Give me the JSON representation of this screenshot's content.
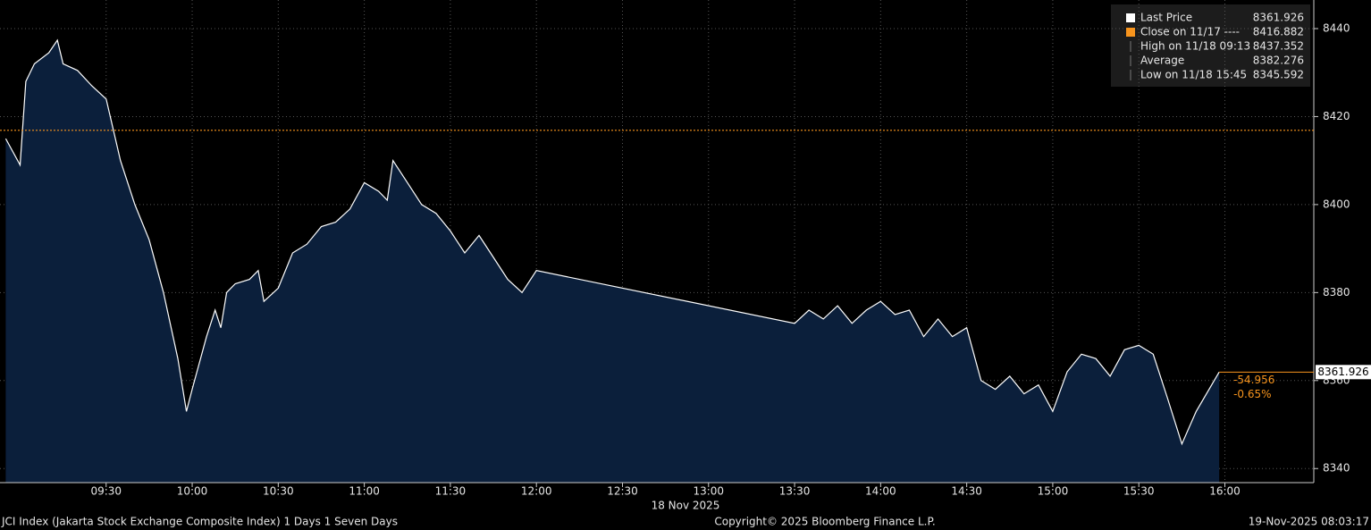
{
  "chart_data": {
    "type": "area",
    "series": [
      {
        "name": "Last Price",
        "color": "#ffffff",
        "fill": "#0b1f3b",
        "values": [
          8415,
          8409,
          8428,
          8432,
          8434.5,
          8437.352,
          8432,
          8430.5,
          8427,
          8424,
          8410,
          8400,
          8392,
          8380,
          8365,
          8353,
          8358,
          8370,
          8376,
          8372,
          8380,
          8382,
          8383,
          8385,
          8378,
          8381,
          8389,
          8391,
          8395,
          8396,
          8399,
          8405,
          8403,
          8401,
          8410,
          8405,
          8400,
          8398,
          8394,
          8389,
          8393,
          8388,
          8383,
          8380,
          8385,
          8373,
          8376,
          8374,
          8377,
          8373,
          8376,
          8378,
          8375,
          8376,
          8370,
          8374,
          8370,
          8372,
          8360,
          8358,
          8361,
          8357,
          8359,
          8353,
          8362,
          8366,
          8365,
          8361,
          8367,
          8368,
          8366,
          8356,
          8345.592,
          8353,
          8361.926
        ]
      }
    ],
    "x": [
      "08:55",
      "09:00",
      "09:02",
      "09:05",
      "09:10",
      "09:13",
      "09:15",
      "09:20",
      "09:25",
      "09:30",
      "09:35",
      "09:40",
      "09:45",
      "09:50",
      "09:55",
      "09:58",
      "10:00",
      "10:05",
      "10:08",
      "10:10",
      "10:12",
      "10:15",
      "10:20",
      "10:23",
      "10:25",
      "10:30",
      "10:35",
      "10:40",
      "10:45",
      "10:50",
      "10:55",
      "11:00",
      "11:05",
      "11:08",
      "11:10",
      "11:15",
      "11:20",
      "11:25",
      "11:30",
      "11:35",
      "11:40",
      "11:45",
      "11:50",
      "11:55",
      "12:00",
      "13:30",
      "13:35",
      "13:40",
      "13:45",
      "13:50",
      "13:55",
      "14:00",
      "14:05",
      "14:10",
      "14:15",
      "14:20",
      "14:25",
      "14:30",
      "14:35",
      "14:40",
      "14:45",
      "14:50",
      "14:55",
      "15:00",
      "15:05",
      "15:10",
      "15:15",
      "15:20",
      "15:25",
      "15:30",
      "15:35",
      "15:40",
      "15:45",
      "15:50",
      "15:58"
    ],
    "xlim": [
      "08:53",
      "16:31"
    ],
    "xticks": [
      "09:30",
      "10:00",
      "10:30",
      "11:00",
      "11:30",
      "12:00",
      "12:30",
      "13:00",
      "13:30",
      "14:00",
      "14:30",
      "15:00",
      "15:30",
      "16:00"
    ],
    "xlabel": "18 Nov 2025",
    "ylim": [
      8336.8,
      8446.5
    ],
    "yticks": [
      8340,
      8360,
      8380,
      8400,
      8420,
      8440
    ],
    "grid": true,
    "reference_line": {
      "label": "Close on 11/17 ----",
      "value": 8416.882,
      "color": "#f7941d"
    },
    "legend_items": [
      {
        "label": "High on 11/18 09:13",
        "value": 8437.352
      },
      {
        "label": "Average",
        "value": 8382.276
      },
      {
        "label": "Low on 11/18 15:45",
        "value": 8345.592
      }
    ],
    "change": {
      "value": -54.956,
      "percent": {
        "value": -0.65,
        "label": "-0.65%"
      }
    },
    "footer": {
      "left": "JCI Index (Jakarta Stock Exchange Composite Index) 1 Days 1 Seven Days",
      "center": "Copyright© 2025 Bloomberg Finance L.P.",
      "right": "19-Nov-2025 08:03:17"
    }
  }
}
